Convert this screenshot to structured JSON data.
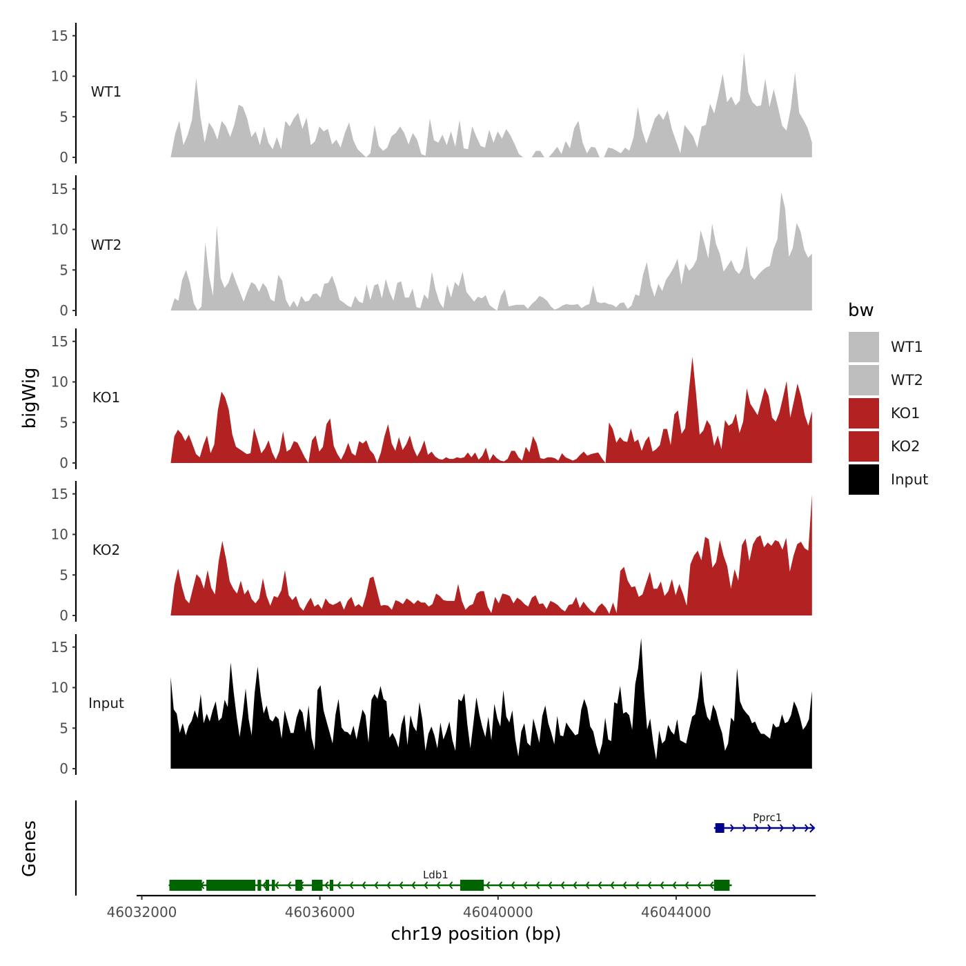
{
  "chart_data": {
    "type": "area",
    "ylabel": "bigWig",
    "genes_label": "Genes",
    "xlabel": "chr19 position (bp)",
    "x_range": [
      46032000,
      46047100
    ],
    "data_range": [
      46032650,
      46047050
    ],
    "x_ticks": [
      46032000,
      46036000,
      46040000,
      46044000
    ],
    "x_tick_labels": [
      "46032000",
      "46036000",
      "46040000",
      "46044000"
    ],
    "y_range": [
      0,
      16
    ],
    "y_ticks": [
      0,
      5,
      10,
      15
    ],
    "y_tick_labels": [
      "0",
      "5",
      "10",
      "15"
    ],
    "legend": {
      "title": "bw",
      "items": [
        {
          "label": "WT1",
          "color": "#BEBEBE"
        },
        {
          "label": "WT2",
          "color": "#BEBEBE"
        },
        {
          "label": "KO1",
          "color": "#B22222"
        },
        {
          "label": "KO2",
          "color": "#B22222"
        },
        {
          "label": "Input",
          "color": "#000000"
        }
      ]
    },
    "series": [
      {
        "name": "WT1",
        "color": "#BEBEBE",
        "values": [
          0,
          2.8,
          4.5,
          1.5,
          2.8,
          4.6,
          9.8,
          5,
          1.8,
          4.3,
          3.5,
          2.2,
          4.5,
          3.8,
          2.5,
          4.1,
          6.5,
          6.2,
          4.8,
          2.5,
          3.2,
          1.5,
          3.8,
          1.8,
          1,
          2.5,
          1,
          4.5,
          3.8,
          4.8,
          5.5,
          3.5,
          4.9,
          1.5,
          2,
          3.8,
          3.2,
          3.5,
          1.6,
          2.2,
          1.2,
          3,
          4.3,
          2.1,
          1,
          0.5,
          0,
          0.5,
          4,
          1.4,
          0.8,
          1.2,
          2.6,
          3,
          3.8,
          3,
          1.6,
          3,
          2.2,
          0.4,
          0.2,
          4.8,
          2.1,
          1.8,
          2.8,
          1.5,
          3.2,
          1.3,
          4.6,
          1.1,
          1,
          3.8,
          2.5,
          1.4,
          1.2,
          3.4,
          1.8,
          3.2,
          2.3,
          3.5,
          2.7,
          1.6,
          0.4,
          0,
          0,
          0,
          0.8,
          0.8,
          0,
          0,
          0.6,
          1.3,
          0.4,
          2,
          1.1,
          3.6,
          4.5,
          1.8,
          0.5,
          1.3,
          1.2,
          0,
          0,
          1.2,
          1.1,
          0.8,
          0.5,
          1.2,
          0.8,
          2.5,
          6.2,
          3.3,
          1.7,
          3.2,
          4.8,
          5.4,
          4.6,
          5.8,
          3.5,
          2,
          0.5,
          4,
          3.3,
          2.6,
          1.2,
          3.8,
          4,
          6.6,
          5.4,
          7.8,
          10.3,
          6.8,
          7.5,
          6.4,
          7,
          12.9,
          8,
          6.8,
          6.3,
          6.4,
          9.7,
          6.2,
          8.4,
          6.2,
          3.9,
          3.3,
          6,
          10.5,
          5.5,
          4.6,
          3.6,
          1.8
        ]
      },
      {
        "name": "WT2",
        "color": "#BEBEBE",
        "values": [
          0,
          1.5,
          1.2,
          3.8,
          5,
          3.4,
          0.9,
          0,
          0.5,
          8.4,
          4.2,
          1.8,
          10.5,
          4,
          2.8,
          3.4,
          4.8,
          3.5,
          2.3,
          1.1,
          2.4,
          3.5,
          3.2,
          2.3,
          3.4,
          2.8,
          1.4,
          1.1,
          4.4,
          3.7,
          1.3,
          0.4,
          1.2,
          0.4,
          1.8,
          1.1,
          1.2,
          2,
          2.1,
          1.6,
          3.3,
          3.4,
          4.3,
          3,
          1.3,
          1,
          0.6,
          0.4,
          1.8,
          1.1,
          0.9,
          3.2,
          1.3,
          3.1,
          3.3,
          1.5,
          3.9,
          2.3,
          1.2,
          3.4,
          3.6,
          1.6,
          1.6,
          2.7,
          0.4,
          0.3,
          2,
          1.4,
          4.8,
          2.5,
          1,
          0.3,
          3.2,
          1.6,
          3.5,
          3,
          4.8,
          2.3,
          1.7,
          1.1,
          1.7,
          1.5,
          1.9,
          0.7,
          0.3,
          0,
          1.8,
          2.6,
          0.5,
          0.6,
          0.7,
          0.7,
          0.7,
          0.2,
          0.8,
          1.2,
          1.8,
          1.6,
          1.2,
          0.5,
          0.1,
          0.3,
          0.6,
          0.8,
          0.7,
          0.7,
          0.8,
          0.3,
          0.6,
          0.8,
          3.1,
          1.1,
          0.9,
          1,
          0.8,
          0.7,
          0.4,
          0.9,
          1,
          0.2,
          0.6,
          2,
          1.8,
          4.4,
          6,
          3.1,
          1.7,
          3.3,
          2.4,
          3.8,
          4.5,
          5.3,
          6.4,
          3.2,
          5.8,
          4.9,
          5.4,
          6.3,
          9.9,
          8.3,
          6.4,
          10.7,
          8.2,
          7,
          4.8,
          5.5,
          6.2,
          5,
          4.5,
          5.3,
          8,
          4.4,
          3.8,
          4.4,
          4.9,
          5.3,
          5.5,
          7.6,
          8.8,
          14.6,
          12.6,
          6.6,
          7.7,
          10.8,
          9.8,
          7.5,
          6.5,
          7
        ]
      },
      {
        "name": "KO1",
        "color": "#B22222",
        "values": [
          0,
          3.3,
          4.1,
          3.6,
          2.7,
          3.5,
          2.3,
          1.1,
          0.7,
          2.2,
          3.4,
          1.2,
          2.3,
          6.5,
          8.8,
          8.1,
          6.6,
          3.5,
          2,
          1.7,
          1.4,
          1.1,
          1.2,
          4.3,
          2.8,
          1.2,
          1.8,
          2.8,
          1.3,
          0.4,
          1.5,
          3.9,
          1.4,
          1.7,
          2.7,
          2.5,
          1.6,
          0.7,
          0,
          2.8,
          3.4,
          1.4,
          2,
          4.8,
          5.5,
          2.1,
          1.1,
          0.4,
          1.3,
          2.5,
          1.2,
          0.9,
          2.7,
          2.4,
          2.8,
          1.6,
          1.1,
          0,
          1.3,
          3.3,
          4.8,
          2.4,
          1.5,
          3.2,
          1.6,
          2.3,
          3.4,
          1.8,
          0.8,
          1.6,
          2.8,
          1,
          1.4,
          0.8,
          0.5,
          0.4,
          0.7,
          0.5,
          0.5,
          0.7,
          0.6,
          0.7,
          1.3,
          0.7,
          1.3,
          0.4,
          0.9,
          1.9,
          0.3,
          1.1,
          0.6,
          0.3,
          0.2,
          0.5,
          1.5,
          1.5,
          0.7,
          0.3,
          2,
          1.3,
          3.3,
          2.4,
          0.6,
          0.5,
          0.7,
          0.7,
          0.6,
          0.3,
          1.2,
          0.7,
          0.5,
          0.3,
          0.5,
          1,
          1.4,
          0.9,
          1.1,
          1.2,
          1.3,
          0.6,
          0,
          5,
          4.2,
          2.5,
          3.2,
          2.7,
          2.6,
          4.3,
          2.6,
          2.9,
          1.5,
          2.7,
          3.3,
          1.4,
          1.7,
          2.2,
          4.2,
          4.2,
          2.2,
          6,
          6.5,
          3.6,
          4.3,
          8.8,
          13.1,
          8.6,
          3.5,
          4,
          5.3,
          4.6,
          2.1,
          3.4,
          1.7,
          5.3,
          4.6,
          4.9,
          6.1,
          3.7,
          5.1,
          9.2,
          7.3,
          6.6,
          5.9,
          7.6,
          9.3,
          8.3,
          5.6,
          5.1,
          6.2,
          8.1,
          10.1,
          5.6,
          7.6,
          9.8,
          8.2,
          5.9,
          4.6,
          6.4
        ]
      },
      {
        "name": "KO2",
        "color": "#B22222",
        "values": [
          0,
          3.8,
          5.8,
          3.6,
          2,
          1.5,
          3.3,
          5.1,
          4.6,
          3.3,
          5.6,
          3.4,
          2.6,
          6.7,
          9.2,
          7,
          4.2,
          3.3,
          2.7,
          4.3,
          2.6,
          3.2,
          2,
          1.5,
          2.1,
          4.6,
          2.4,
          1.2,
          2.4,
          2.2,
          3.1,
          5.6,
          2.5,
          1.9,
          2.4,
          1.1,
          0.6,
          1.5,
          2.2,
          1.1,
          1.4,
          0.8,
          2.1,
          1.5,
          1.3,
          1.5,
          1.8,
          0.7,
          1.8,
          2.3,
          1.1,
          1.4,
          1,
          2.5,
          4.6,
          4.8,
          3,
          1.2,
          1.3,
          1.2,
          0.7,
          1.9,
          1.7,
          1.4,
          2.1,
          1.8,
          1.4,
          1.9,
          1.6,
          1.6,
          1.1,
          1.4,
          2.7,
          2.4,
          1.9,
          1.8,
          1.8,
          1.8,
          3.9,
          1.8,
          0.7,
          1.2,
          1.4,
          2.7,
          3,
          3,
          1.1,
          0.3,
          2.3,
          1.5,
          2.7,
          2.6,
          2.4,
          1.5,
          2.2,
          1.9,
          1.4,
          1.1,
          2.2,
          2.5,
          1.4,
          1.5,
          0.8,
          1.8,
          1.6,
          1.3,
          0.8,
          0.5,
          1.3,
          1.4,
          2.3,
          0.9,
          1.7,
          1.1,
          0.6,
          0.3,
          1.1,
          1.5,
          1,
          0.2,
          1.6,
          0.3,
          5.5,
          6,
          4.3,
          3.5,
          3.6,
          2.3,
          2.6,
          4,
          5.4,
          3.3,
          3.3,
          4.2,
          2.4,
          3,
          4.5,
          2.5,
          3.9,
          2.7,
          1.2,
          6.3,
          7.4,
          8,
          6.8,
          9.7,
          9.4,
          5.9,
          6.6,
          9.3,
          7.4,
          6.1,
          3.3,
          5.7,
          4.3,
          8.7,
          9.5,
          6.7,
          8.8,
          9.6,
          9.9,
          8.4,
          9,
          8.6,
          9.3,
          9.1,
          8.1,
          9.6,
          5.4,
          7.4,
          8.8,
          9.1,
          8.3,
          8,
          14.9
        ]
      },
      {
        "name": "Input",
        "color": "#000000",
        "values": [
          11.3,
          7.3,
          6.8,
          4.4,
          5.6,
          4.1,
          5.3,
          5.9,
          7.2,
          6.2,
          9.2,
          5.6,
          6.8,
          5.8,
          7.2,
          8.3,
          5.9,
          6.3,
          8.5,
          7.6,
          13.1,
          9.5,
          6.4,
          3.9,
          6.6,
          9.9,
          6.1,
          4.1,
          9.3,
          12.6,
          9.2,
          6.8,
          7.8,
          6.1,
          5.8,
          6.5,
          6.1,
          3.7,
          7.2,
          5.8,
          4.4,
          4.4,
          6.3,
          7.4,
          6.9,
          4.5,
          7.8,
          3.8,
          2.3,
          9.7,
          10.3,
          7.2,
          5.8,
          4.5,
          3.1,
          6.7,
          8.6,
          5.1,
          4.6,
          4.5,
          4.1,
          5.3,
          3.6,
          5.5,
          7.3,
          6.6,
          3.2,
          8.5,
          9.2,
          8.6,
          10.2,
          8.6,
          8.3,
          3.8,
          4.4,
          3.7,
          2.6,
          5.4,
          6.7,
          2.9,
          6.6,
          5.2,
          4.6,
          8.2,
          6,
          2.2,
          4.3,
          5.2,
          4.1,
          2.5,
          5.7,
          3.6,
          4.6,
          5.8,
          3.5,
          2.2,
          8.6,
          8.3,
          9.3,
          5.4,
          2.5,
          5.6,
          8.8,
          6.7,
          5.1,
          3.9,
          6.4,
          3.5,
          8,
          6.2,
          5.2,
          9.7,
          6.4,
          5.7,
          7.2,
          3.6,
          1.5,
          4.6,
          5.6,
          3.2,
          2.8,
          6.2,
          4.7,
          3.2,
          6.5,
          7.8,
          5.6,
          4.4,
          3,
          6.5,
          4.1,
          4,
          5.7,
          5.1,
          4.6,
          4.1,
          4.3,
          7.3,
          8.6,
          7.5,
          5.2,
          4.6,
          2.9,
          1.7,
          3.1,
          6.3,
          3.6,
          3.4,
          8.2,
          8,
          10.2,
          6.8,
          7,
          6.6,
          4.8,
          10.4,
          12.4,
          16.1,
          9.5,
          4.8,
          6.2,
          3.3,
          1.1,
          4.7,
          3.1,
          3.5,
          5.4,
          4.6,
          4.2,
          6.1,
          3.5,
          3.3,
          3.1,
          4.8,
          6.4,
          6.7,
          8.8,
          12.1,
          8.2,
          6.4,
          5.9,
          7.9,
          7.1,
          5.5,
          4.4,
          2.2,
          3.1,
          6.3,
          5.8,
          12.4,
          8.3,
          7.4,
          6.9,
          6.5,
          5.6,
          5.8,
          4.9,
          4.3,
          4.3,
          4,
          3.7,
          5.6,
          5.1,
          5.2,
          6.7,
          5.6,
          5.8,
          6.6,
          8.3,
          7.5,
          6.3,
          4.8,
          5.3,
          6.1,
          9.6
        ]
      }
    ],
    "genes": [
      {
        "name": "Ldb1",
        "color": "#006400",
        "strand": "-",
        "start": 46032620,
        "end": 46045250,
        "label_at": 46038600,
        "exons": [
          [
            46032620,
            46033350
          ],
          [
            46033450,
            46034550
          ],
          [
            46034600,
            46034680
          ],
          [
            46034780,
            46034860
          ],
          [
            46034920,
            46034990
          ],
          [
            46035450,
            46035600
          ],
          [
            46035820,
            46036060
          ],
          [
            46036220,
            46036300
          ],
          [
            46039150,
            46039680
          ],
          [
            46044850,
            46045200
          ]
        ]
      },
      {
        "name": "Pprc1",
        "color": "#00008B",
        "strand": "+",
        "start": 46044850,
        "end": 46047100,
        "label_at": 46046050,
        "exons": [
          [
            46044880,
            46045080
          ]
        ]
      }
    ]
  }
}
